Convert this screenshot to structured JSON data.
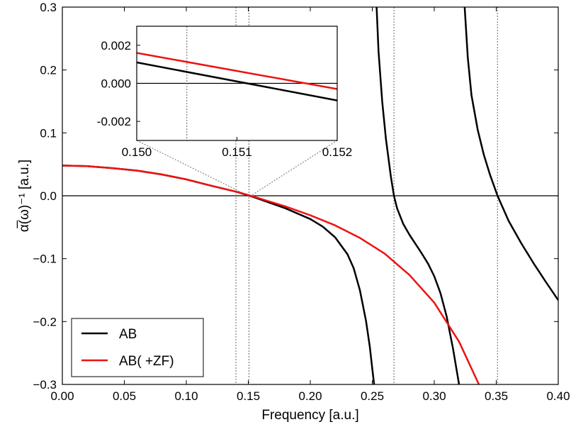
{
  "chart_data": {
    "type": "line",
    "xlabel": "Frequency [a.u.]",
    "ylabel": "α̅(ω)⁻¹ [a.u.]",
    "xlim": [
      0.0,
      0.4
    ],
    "ylim": [
      -0.3,
      0.3
    ],
    "x_ticks": [
      "0.00",
      "0.05",
      "0.10",
      "0.15",
      "0.20",
      "0.25",
      "0.30",
      "0.35",
      "0.40"
    ],
    "y_ticks": [
      "−0.3",
      "−0.2",
      "−0.1",
      "0.0",
      "0.1",
      "0.2",
      "0.3"
    ],
    "legend": {
      "position": "lower-left",
      "entries": [
        "AB",
        "AB( +ZF)"
      ]
    },
    "vertical_lines_x": [
      0.14,
      0.1505,
      0.2675,
      0.351
    ],
    "series": [
      {
        "name": "AB",
        "color": "#000000",
        "segments": [
          [
            [
              0.0,
              0.048
            ],
            [
              0.02,
              0.047
            ],
            [
              0.04,
              0.044
            ],
            [
              0.06,
              0.04
            ],
            [
              0.08,
              0.034
            ],
            [
              0.1,
              0.026
            ],
            [
              0.12,
              0.016
            ],
            [
              0.14,
              0.0065
            ],
            [
              0.151,
              0.0
            ],
            [
              0.16,
              -0.006
            ],
            [
              0.18,
              -0.02
            ],
            [
              0.2,
              -0.037
            ],
            [
              0.21,
              -0.049
            ],
            [
              0.22,
              -0.066
            ],
            [
              0.23,
              -0.093
            ],
            [
              0.235,
              -0.115
            ],
            [
              0.24,
              -0.15
            ],
            [
              0.245,
              -0.2
            ],
            [
              0.248,
              -0.24
            ],
            [
              0.25,
              -0.275
            ],
            [
              0.2515,
              -0.3
            ]
          ],
          [
            [
              0.2535,
              0.3
            ],
            [
              0.255,
              0.23
            ],
            [
              0.258,
              0.15
            ],
            [
              0.261,
              0.09
            ],
            [
              0.265,
              0.03
            ],
            [
              0.2675,
              0.0
            ],
            [
              0.27,
              -0.02
            ],
            [
              0.275,
              -0.045
            ],
            [
              0.28,
              -0.062
            ],
            [
              0.285,
              -0.077
            ],
            [
              0.29,
              -0.092
            ],
            [
              0.295,
              -0.108
            ],
            [
              0.3,
              -0.128
            ],
            [
              0.305,
              -0.155
            ],
            [
              0.31,
              -0.192
            ],
            [
              0.315,
              -0.242
            ],
            [
              0.32,
              -0.3
            ]
          ],
          [
            [
              0.3245,
              0.3
            ],
            [
              0.327,
              0.22
            ],
            [
              0.33,
              0.16
            ],
            [
              0.335,
              0.105
            ],
            [
              0.34,
              0.065
            ],
            [
              0.345,
              0.033
            ],
            [
              0.351,
              0.0
            ],
            [
              0.36,
              -0.04
            ],
            [
              0.37,
              -0.075
            ],
            [
              0.38,
              -0.107
            ],
            [
              0.39,
              -0.137
            ],
            [
              0.4,
              -0.166
            ]
          ]
        ]
      },
      {
        "name": "AB( +ZF)",
        "color": "#ee1111",
        "segments": [
          [
            [
              0.0,
              0.048
            ],
            [
              0.02,
              0.047
            ],
            [
              0.04,
              0.044
            ],
            [
              0.06,
              0.04
            ],
            [
              0.08,
              0.034
            ],
            [
              0.1,
              0.026
            ],
            [
              0.12,
              0.016
            ],
            [
              0.14,
              0.0065
            ],
            [
              0.152,
              0.0
            ],
            [
              0.18,
              -0.017
            ],
            [
              0.2,
              -0.031
            ],
            [
              0.22,
              -0.047
            ],
            [
              0.24,
              -0.067
            ],
            [
              0.26,
              -0.092
            ],
            [
              0.28,
              -0.126
            ],
            [
              0.3,
              -0.17
            ],
            [
              0.32,
              -0.232
            ],
            [
              0.336,
              -0.3
            ]
          ]
        ]
      }
    ],
    "inset": {
      "xlim": [
        0.15,
        0.152
      ],
      "ylim": [
        -0.003,
        0.003
      ],
      "x_ticks": [
        "0.150",
        "0.151",
        "0.152"
      ],
      "y_ticks": [
        "0.002",
        "0.000",
        "-0.002"
      ],
      "vertical_line_x": 0.1505,
      "series": [
        {
          "name": "AB",
          "points": [
            [
              0.15,
              0.0011
            ],
            [
              0.152,
              -0.0009
            ]
          ]
        },
        {
          "name": "AB( +ZF)",
          "points": [
            [
              0.15,
              0.0016
            ],
            [
              0.152,
              -0.0003
            ]
          ]
        }
      ]
    }
  }
}
